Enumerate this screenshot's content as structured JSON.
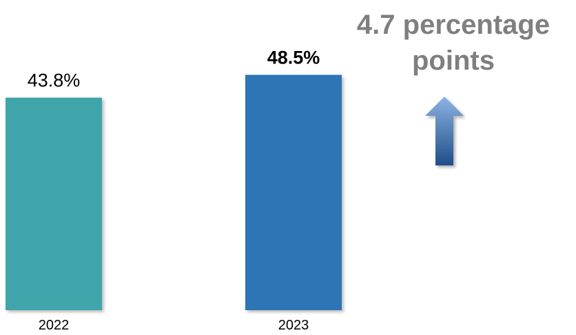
{
  "chart_data": {
    "type": "bar",
    "categories": [
      "2022",
      "2023"
    ],
    "values": [
      43.8,
      48.5
    ],
    "value_labels": [
      "43.8%",
      "48.5%"
    ],
    "value_label_bold": [
      false,
      true
    ],
    "ylim": [
      0,
      50
    ],
    "grid": false,
    "title": "",
    "xlabel": "",
    "ylabel": "",
    "colors": [
      "#40a5ab",
      "#2e74b5"
    ],
    "annotation": {
      "text": "4.7 percentage points",
      "color": "#7f7f7f",
      "arrow_direction": "up",
      "arrow_colors": [
        "#8db3e2",
        "#1f4e8a"
      ]
    }
  }
}
